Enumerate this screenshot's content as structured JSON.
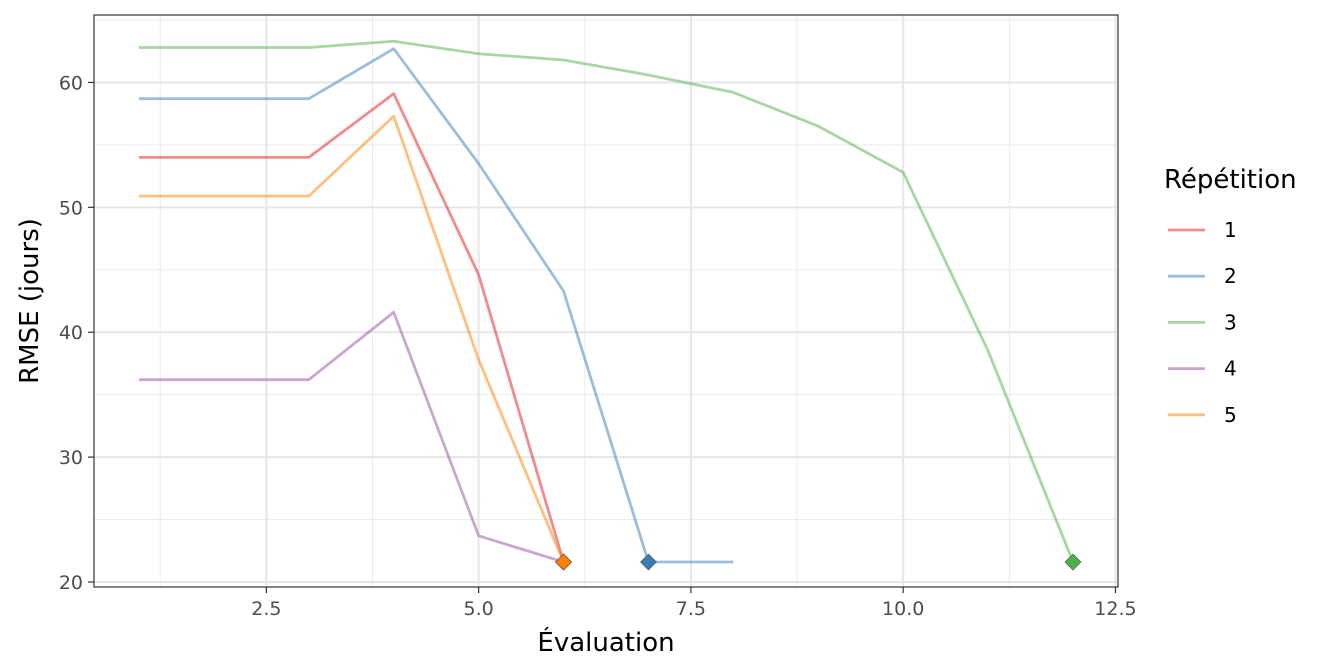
{
  "chart_data": {
    "type": "line",
    "xlabel": "Évaluation",
    "ylabel": "RMSE (jours)",
    "xlim": [
      0.47,
      12.53
    ],
    "ylim": [
      19.6,
      65.4
    ],
    "x_ticks": [
      2.5,
      5.0,
      7.5,
      10.0,
      12.5
    ],
    "x_tick_labels": [
      "2.5",
      "5.0",
      "7.5",
      "10.0",
      "12.5"
    ],
    "y_ticks": [
      20,
      30,
      40,
      50,
      60
    ],
    "y_tick_labels": [
      "20",
      "30",
      "40",
      "50",
      "60"
    ],
    "grid": true,
    "legend": {
      "title": "Répétition",
      "position": "right"
    },
    "series": [
      {
        "name": "1",
        "color": "#E41A1C",
        "x": [
          1,
          2,
          3,
          4,
          5,
          6
        ],
        "y": [
          54.0,
          54.0,
          54.0,
          59.1,
          44.6,
          21.6
        ]
      },
      {
        "name": "2",
        "color": "#377EB8",
        "x": [
          1,
          2,
          3,
          4,
          5,
          6,
          7,
          8
        ],
        "y": [
          58.7,
          58.7,
          58.7,
          62.7,
          53.5,
          43.3,
          21.6,
          21.6
        ]
      },
      {
        "name": "3",
        "color": "#4DAF4A",
        "x": [
          1,
          2,
          3,
          4,
          5,
          6,
          7,
          8,
          9,
          10,
          11,
          12
        ],
        "y": [
          62.8,
          62.8,
          62.8,
          63.3,
          62.3,
          61.8,
          60.6,
          59.2,
          56.5,
          52.8,
          38.5,
          21.6
        ]
      },
      {
        "name": "4",
        "color": "#984EA3",
        "x": [
          1,
          2,
          3,
          4,
          5,
          6
        ],
        "y": [
          36.2,
          36.2,
          36.2,
          41.6,
          23.7,
          21.6
        ]
      },
      {
        "name": "5",
        "color": "#FF7F00",
        "x": [
          1,
          2,
          3,
          4,
          5,
          6
        ],
        "y": [
          50.9,
          50.9,
          50.9,
          57.3,
          37.8,
          21.6
        ]
      }
    ],
    "markers": [
      {
        "series": "1",
        "x": 6,
        "y": 21.6
      },
      {
        "series": "4",
        "x": 6,
        "y": 21.6
      },
      {
        "series": "5",
        "x": 6,
        "y": 21.6
      },
      {
        "series": "2",
        "x": 7,
        "y": 21.6
      },
      {
        "series": "3",
        "x": 12,
        "y": 21.6
      }
    ],
    "line_alpha": 0.5
  }
}
